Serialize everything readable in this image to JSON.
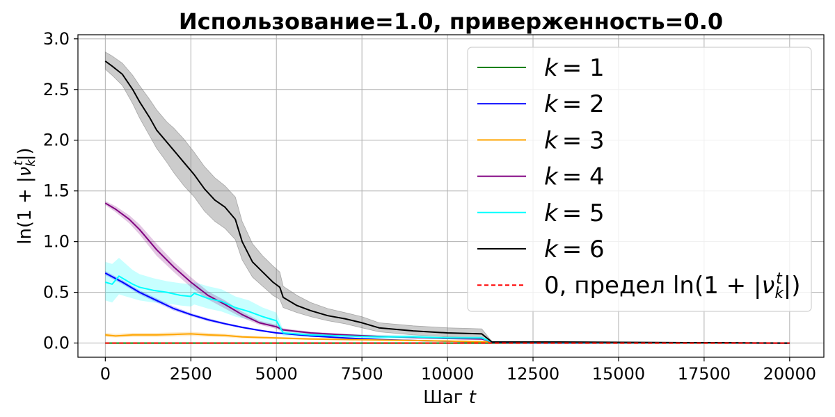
{
  "chart_data": {
    "type": "line",
    "title": "Использование=1.0, приверженность=0.0",
    "xlabel": "Шаг",
    "xlabel_var": "t",
    "ylabel": "ln(1 + |ν_k^t|)",
    "xlim": [
      -800,
      21000
    ],
    "ylim": [
      -0.14,
      3.04
    ],
    "xticks": [
      0,
      2500,
      5000,
      7500,
      10000,
      12500,
      15000,
      17500,
      20000
    ],
    "yticks": [
      0.0,
      0.5,
      1.0,
      1.5,
      2.0,
      2.5,
      3.0
    ],
    "ytick_labels": [
      "0.0",
      "0.5",
      "1.0",
      "1.5",
      "2.0",
      "2.5",
      "3.0"
    ],
    "grid": true,
    "legend_position": "top-right",
    "series": [
      {
        "name": "k = 1",
        "name_var": "k",
        "name_eq": "= 1",
        "color": "#008000",
        "x": [
          0,
          20000
        ],
        "y": [
          0.0,
          0.0
        ],
        "lower": [
          0.0,
          0.0
        ],
        "upper": [
          0.0,
          0.0
        ]
      },
      {
        "name": "k = 2",
        "name_var": "k",
        "name_eq": "= 2",
        "color": "#0000ff",
        "x": [
          0,
          500,
          1000,
          1500,
          2000,
          2500,
          3000,
          3500,
          4000,
          4500,
          5000,
          6000,
          7000,
          8000,
          9000,
          10000,
          11000,
          11300,
          12000,
          14000,
          20000
        ],
        "y": [
          0.69,
          0.6,
          0.5,
          0.42,
          0.34,
          0.28,
          0.23,
          0.19,
          0.155,
          0.125,
          0.1,
          0.07,
          0.05,
          0.035,
          0.025,
          0.018,
          0.012,
          0.005,
          0.002,
          0.001,
          0.0
        ],
        "lower": [
          0.67,
          0.58,
          0.48,
          0.4,
          0.32,
          0.265,
          0.215,
          0.178,
          0.145,
          0.115,
          0.092,
          0.064,
          0.045,
          0.031,
          0.022,
          0.016,
          0.01,
          0.004,
          0.001,
          0.0,
          0.0
        ],
        "upper": [
          0.71,
          0.62,
          0.52,
          0.44,
          0.36,
          0.295,
          0.245,
          0.202,
          0.165,
          0.135,
          0.108,
          0.076,
          0.055,
          0.039,
          0.028,
          0.02,
          0.014,
          0.006,
          0.003,
          0.002,
          0.0
        ]
      },
      {
        "name": "k = 3",
        "name_var": "k",
        "name_eq": "= 3",
        "color": "#ffa500",
        "x": [
          0,
          300,
          800,
          1500,
          2000,
          2500,
          3000,
          3500,
          4000,
          5000,
          6000,
          7000,
          8000,
          9000,
          10000,
          11300,
          12000,
          20000
        ],
        "y": [
          0.08,
          0.07,
          0.08,
          0.08,
          0.085,
          0.09,
          0.08,
          0.075,
          0.06,
          0.05,
          0.04,
          0.035,
          0.03,
          0.025,
          0.02,
          0.01,
          0.005,
          0.0
        ],
        "lower": [
          0.06,
          0.055,
          0.06,
          0.06,
          0.065,
          0.07,
          0.062,
          0.058,
          0.046,
          0.038,
          0.03,
          0.026,
          0.022,
          0.018,
          0.014,
          0.006,
          0.002,
          0.0
        ],
        "upper": [
          0.1,
          0.09,
          0.1,
          0.1,
          0.105,
          0.11,
          0.1,
          0.092,
          0.074,
          0.062,
          0.05,
          0.044,
          0.038,
          0.032,
          0.026,
          0.014,
          0.008,
          0.0
        ]
      },
      {
        "name": "k = 4",
        "name_var": "k",
        "name_eq": "= 4",
        "color": "#800080",
        "x": [
          0,
          300,
          700,
          1000,
          1500,
          2000,
          2500,
          3000,
          3500,
          4000,
          4500,
          5000,
          5200,
          6000,
          7000,
          8000,
          9000,
          10000,
          11000,
          11300,
          12000,
          20000
        ],
        "y": [
          1.38,
          1.32,
          1.22,
          1.12,
          0.92,
          0.75,
          0.6,
          0.47,
          0.38,
          0.28,
          0.2,
          0.16,
          0.13,
          0.1,
          0.08,
          0.065,
          0.055,
          0.045,
          0.04,
          0.01,
          0.005,
          0.0
        ],
        "lower": [
          1.36,
          1.29,
          1.18,
          1.07,
          0.86,
          0.7,
          0.55,
          0.43,
          0.34,
          0.25,
          0.18,
          0.14,
          0.115,
          0.088,
          0.07,
          0.057,
          0.048,
          0.039,
          0.034,
          0.008,
          0.003,
          0.0
        ],
        "upper": [
          1.4,
          1.35,
          1.26,
          1.17,
          0.98,
          0.8,
          0.65,
          0.51,
          0.42,
          0.31,
          0.22,
          0.18,
          0.145,
          0.112,
          0.09,
          0.073,
          0.062,
          0.051,
          0.046,
          0.012,
          0.007,
          0.0
        ]
      },
      {
        "name": "k = 5",
        "name_var": "k",
        "name_eq": "= 5",
        "color": "#00ffff",
        "x": [
          0,
          200,
          400,
          600,
          800,
          1000,
          1400,
          1800,
          2200,
          2500,
          2600,
          3000,
          3400,
          3800,
          4200,
          4600,
          5000,
          5200,
          6000,
          7000,
          8000,
          9000,
          10000,
          11000,
          11300,
          12000,
          20000
        ],
        "y": [
          0.6,
          0.58,
          0.66,
          0.62,
          0.58,
          0.55,
          0.52,
          0.5,
          0.47,
          0.46,
          0.49,
          0.44,
          0.41,
          0.35,
          0.31,
          0.26,
          0.22,
          0.1,
          0.08,
          0.07,
          0.06,
          0.06,
          0.05,
          0.05,
          0.01,
          0.005,
          0.0
        ],
        "lower": [
          0.42,
          0.4,
          0.48,
          0.46,
          0.44,
          0.42,
          0.4,
          0.39,
          0.37,
          0.36,
          0.38,
          0.34,
          0.31,
          0.26,
          0.23,
          0.19,
          0.16,
          0.07,
          0.06,
          0.05,
          0.045,
          0.045,
          0.04,
          0.04,
          0.005,
          0.002,
          0.0
        ],
        "upper": [
          0.8,
          0.78,
          0.84,
          0.78,
          0.72,
          0.68,
          0.64,
          0.61,
          0.59,
          0.58,
          0.6,
          0.56,
          0.53,
          0.46,
          0.42,
          0.35,
          0.3,
          0.13,
          0.1,
          0.09,
          0.08,
          0.08,
          0.07,
          0.07,
          0.015,
          0.008,
          0.0
        ]
      },
      {
        "name": "k = 6",
        "name_var": "k",
        "name_eq": "= 6",
        "color": "#000000",
        "x": [
          0,
          200,
          500,
          800,
          1000,
          1300,
          1500,
          1800,
          2000,
          2300,
          2600,
          2900,
          3200,
          3500,
          3800,
          4000,
          4300,
          4600,
          4900,
          5100,
          5200,
          5600,
          6000,
          6500,
          7000,
          7500,
          8000,
          9000,
          10000,
          11000,
          11300,
          13300,
          20000
        ],
        "y": [
          2.78,
          2.73,
          2.65,
          2.5,
          2.38,
          2.22,
          2.1,
          1.98,
          1.9,
          1.78,
          1.66,
          1.52,
          1.41,
          1.34,
          1.22,
          1.0,
          0.8,
          0.7,
          0.6,
          0.55,
          0.45,
          0.37,
          0.32,
          0.27,
          0.24,
          0.2,
          0.15,
          0.12,
          0.1,
          0.09,
          0.01,
          0.01,
          0.0
        ],
        "lower": [
          2.7,
          2.64,
          2.54,
          2.36,
          2.22,
          2.04,
          1.92,
          1.78,
          1.68,
          1.55,
          1.44,
          1.3,
          1.2,
          1.13,
          1.02,
          0.82,
          0.65,
          0.56,
          0.47,
          0.43,
          0.35,
          0.3,
          0.26,
          0.22,
          0.19,
          0.15,
          0.11,
          0.08,
          0.06,
          0.05,
          0.005,
          0.005,
          0.0
        ],
        "upper": [
          2.87,
          2.83,
          2.76,
          2.64,
          2.54,
          2.4,
          2.3,
          2.18,
          2.12,
          2.01,
          1.88,
          1.74,
          1.63,
          1.55,
          1.44,
          1.2,
          0.98,
          0.86,
          0.76,
          0.7,
          0.56,
          0.47,
          0.4,
          0.34,
          0.3,
          0.26,
          0.2,
          0.17,
          0.15,
          0.14,
          0.015,
          0.015,
          0.0
        ]
      },
      {
        "name": "0, предел ln(1 + |ν_k^t|)",
        "name_prefix": "0, предел ",
        "name_eq": "ln(1 + |ν",
        "color": "#ff0000",
        "dashed": true,
        "x": [
          0,
          20000
        ],
        "y": [
          0.0,
          0.0
        ]
      }
    ]
  }
}
